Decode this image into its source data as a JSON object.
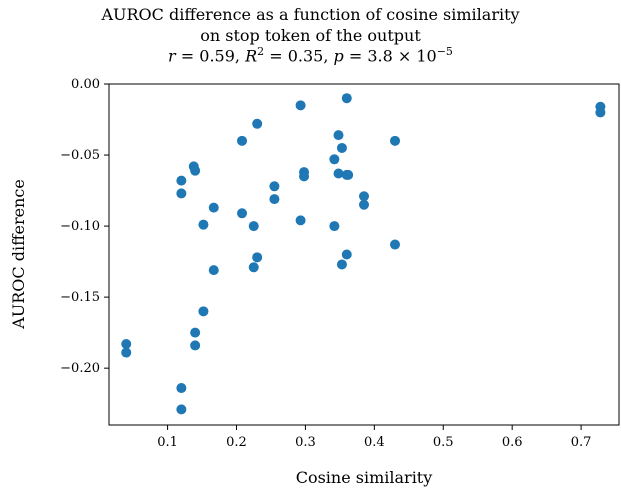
{
  "chart_data": {
    "type": "scatter",
    "title": "AUROC difference as a function of cosine similarity",
    "subtitle": "on stop token of the output",
    "stats": {
      "r": "0.59",
      "R2": "0.35",
      "p_mantissa": "3.8",
      "p_exponent": "−5"
    },
    "xlabel": "Cosine similarity",
    "ylabel": "AUROC difference",
    "xlim": [
      0.015,
      0.755
    ],
    "ylim": [
      -0.24,
      0.0
    ],
    "xticks": [
      0.1,
      0.2,
      0.3,
      0.4,
      0.5,
      0.6,
      0.7
    ],
    "xtick_labels": [
      "0.1",
      "0.2",
      "0.3",
      "0.4",
      "0.5",
      "0.6",
      "0.7"
    ],
    "yticks": [
      0.0,
      -0.05,
      -0.1,
      -0.15,
      -0.2
    ],
    "ytick_labels": [
      "0.00",
      "−0.05",
      "−0.10",
      "−0.15",
      "−0.20"
    ],
    "grid": false,
    "marker_color": "#1f77b4",
    "points": [
      {
        "x": 0.04,
        "y": -0.183
      },
      {
        "x": 0.04,
        "y": -0.189
      },
      {
        "x": 0.12,
        "y": -0.068
      },
      {
        "x": 0.12,
        "y": -0.077
      },
      {
        "x": 0.12,
        "y": -0.214
      },
      {
        "x": 0.12,
        "y": -0.229
      },
      {
        "x": 0.138,
        "y": -0.058
      },
      {
        "x": 0.14,
        "y": -0.061
      },
      {
        "x": 0.14,
        "y": -0.175
      },
      {
        "x": 0.14,
        "y": -0.184
      },
      {
        "x": 0.152,
        "y": -0.099
      },
      {
        "x": 0.152,
        "y": -0.16
      },
      {
        "x": 0.167,
        "y": -0.087
      },
      {
        "x": 0.167,
        "y": -0.131
      },
      {
        "x": 0.208,
        "y": -0.04
      },
      {
        "x": 0.208,
        "y": -0.091
      },
      {
        "x": 0.225,
        "y": -0.1
      },
      {
        "x": 0.225,
        "y": -0.129
      },
      {
        "x": 0.23,
        "y": -0.028
      },
      {
        "x": 0.23,
        "y": -0.122
      },
      {
        "x": 0.255,
        "y": -0.072
      },
      {
        "x": 0.255,
        "y": -0.081
      },
      {
        "x": 0.293,
        "y": -0.015
      },
      {
        "x": 0.293,
        "y": -0.096
      },
      {
        "x": 0.298,
        "y": -0.062
      },
      {
        "x": 0.298,
        "y": -0.065
      },
      {
        "x": 0.342,
        "y": -0.053
      },
      {
        "x": 0.342,
        "y": -0.1
      },
      {
        "x": 0.348,
        "y": -0.036
      },
      {
        "x": 0.348,
        "y": -0.063
      },
      {
        "x": 0.353,
        "y": -0.045
      },
      {
        "x": 0.353,
        "y": -0.127
      },
      {
        "x": 0.36,
        "y": -0.01
      },
      {
        "x": 0.36,
        "y": -0.064
      },
      {
        "x": 0.36,
        "y": -0.12
      },
      {
        "x": 0.362,
        "y": -0.064
      },
      {
        "x": 0.385,
        "y": -0.079
      },
      {
        "x": 0.385,
        "y": -0.085
      },
      {
        "x": 0.43,
        "y": -0.04
      },
      {
        "x": 0.43,
        "y": -0.113
      },
      {
        "x": 0.728,
        "y": -0.016
      },
      {
        "x": 0.728,
        "y": -0.02
      }
    ]
  }
}
